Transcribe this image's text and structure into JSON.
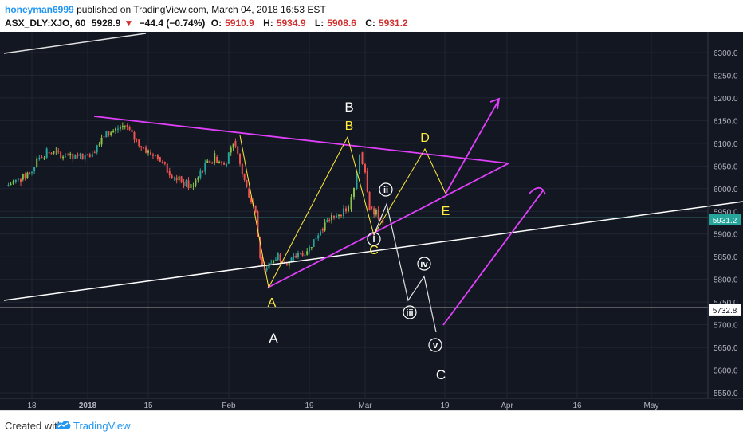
{
  "header": {
    "user": "honeyman6999",
    "published_text": "published on TradingView.com, March 04, 2018 16:53 EST",
    "symbol": "ASX_DLY:XJO, 60",
    "last": "5928.9",
    "change_arrow": "▼",
    "change": "−44.4 (−0.74%)",
    "o_label": "O:",
    "o_value": "5910.9",
    "h_label": "H:",
    "h_value": "5934.9",
    "l_label": "L:",
    "l_value": "5908.6",
    "c_label": "C:",
    "c_value": "5931.2"
  },
  "footer": {
    "created_with": "Created with",
    "brand": "TradingView"
  },
  "colors": {
    "background": "#131722",
    "up": "#26a69a",
    "up_bright": "#8bc34a",
    "down": "#ef5350",
    "magenta": "#e040fb",
    "yellow": "#ffeb3b",
    "white": "#ffffff"
  },
  "chart_data": {
    "type": "candlestick",
    "ylim": [
      5540,
      6330
    ],
    "y_ticks": [
      "6300.0",
      "6250.0",
      "6200.0",
      "6150.0",
      "6100.0",
      "6050.0",
      "6000.0",
      "5950.0",
      "5900.0",
      "5850.0",
      "5800.0",
      "5750.0",
      "5700.0",
      "5650.0",
      "5600.0",
      "5550.0"
    ],
    "x_ticks": [
      "18",
      "2018",
      "15",
      "Feb",
      "19",
      "Mar",
      "19",
      "Apr",
      "16",
      "May"
    ],
    "price_labels": {
      "current": "5931.2",
      "level": "5732.8"
    },
    "wave_labels": {
      "white_B": "B",
      "yellow_B": "B",
      "yellow_D": "D",
      "yellow_E": "E",
      "yellow_A": "A",
      "yellow_C": "C",
      "white_A": "A",
      "white_C": "C",
      "ii": "ii",
      "i": "i",
      "iii": "iii",
      "iv": "iv",
      "v": "v"
    },
    "close_path": [
      [
        "2017-12-11",
        6005
      ],
      [
        "2017-12-13",
        6015
      ],
      [
        "2017-12-15",
        6020
      ],
      [
        "2017-12-18",
        6040
      ],
      [
        "2017-12-20",
        6070
      ],
      [
        "2017-12-22",
        6080
      ],
      [
        "2017-12-27",
        6075
      ],
      [
        "2017-12-29",
        6065
      ],
      [
        "2018-01-03",
        6080
      ],
      [
        "2018-01-05",
        6115
      ],
      [
        "2018-01-08",
        6130
      ],
      [
        "2018-01-10",
        6140
      ],
      [
        "2018-01-12",
        6110
      ],
      [
        "2018-01-15",
        6080
      ],
      [
        "2018-01-17",
        6070
      ],
      [
        "2018-01-19",
        6040
      ],
      [
        "2018-01-22",
        6015
      ],
      [
        "2018-01-24",
        6005
      ],
      [
        "2018-01-26",
        6040
      ],
      [
        "2018-01-29",
        6070
      ],
      [
        "2018-01-31",
        6050
      ],
      [
        "2018-02-02",
        6105
      ],
      [
        "2018-02-05",
        6000
      ],
      [
        "2018-02-07",
        5950
      ],
      [
        "2018-02-08",
        5850
      ],
      [
        "2018-02-09",
        5820
      ],
      [
        "2018-02-12",
        5855
      ],
      [
        "2018-02-14",
        5830
      ],
      [
        "2018-02-16",
        5850
      ],
      [
        "2018-02-19",
        5870
      ],
      [
        "2018-02-21",
        5910
      ],
      [
        "2018-02-23",
        5940
      ],
      [
        "2018-02-26",
        5955
      ],
      [
        "2018-02-27",
        6000
      ],
      [
        "2018-02-28",
        6080
      ],
      [
        "2018-03-01",
        6040
      ],
      [
        "2018-03-02",
        5960
      ],
      [
        "2018-03-05",
        5931
      ]
    ]
  }
}
